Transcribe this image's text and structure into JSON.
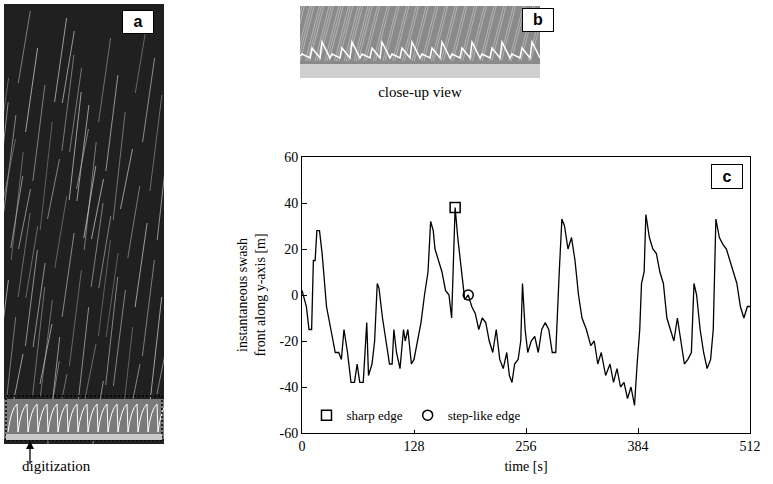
{
  "panels": [
    {
      "label": "a",
      "type": "image",
      "annotation": "digitization"
    },
    {
      "label": "b",
      "type": "image",
      "caption": "close-up view"
    }
  ],
  "chart_data": {
    "panel": "c",
    "type": "line",
    "xlabel": "time [s]",
    "ylabel": "instantaneous swash front along y-axis [m]",
    "x": [
      0,
      5,
      8,
      11,
      13,
      15,
      17,
      20,
      23,
      28,
      33,
      38,
      42,
      45,
      48,
      52,
      56,
      60,
      63,
      66,
      70,
      74,
      76,
      80,
      83,
      86,
      88,
      92,
      96,
      100,
      103,
      105,
      108,
      112,
      116,
      118,
      121,
      125,
      128,
      132,
      136,
      140,
      144,
      147,
      150,
      152,
      156,
      160,
      164,
      168,
      171,
      175,
      178,
      182,
      186,
      190,
      194,
      198,
      202,
      206,
      210,
      214,
      218,
      222,
      226,
      230,
      234,
      237,
      240,
      243,
      247,
      250,
      252,
      255,
      258,
      262,
      266,
      270,
      274,
      278,
      282,
      286,
      290,
      294,
      297,
      300,
      304,
      308,
      312,
      316,
      320,
      325,
      330,
      334,
      338,
      342,
      347,
      352,
      356,
      360,
      364,
      368,
      372,
      376,
      380,
      383,
      386,
      388,
      391,
      393,
      397,
      401,
      405,
      409,
      413,
      417,
      421,
      425,
      429,
      433,
      437,
      441,
      445,
      448,
      451,
      455,
      459,
      463,
      467,
      470,
      473,
      477,
      481,
      485,
      489,
      493,
      497,
      501,
      505,
      509,
      512
    ],
    "series": [
      {
        "color": "#000000",
        "values": [
          2,
          -5,
          -15,
          -15,
          15,
          15,
          28,
          28,
          18,
          -5,
          -15,
          -25,
          -25,
          -28,
          -15,
          -25,
          -38,
          -38,
          -30,
          -38,
          -38,
          -12,
          -35,
          -30,
          -20,
          5,
          3,
          -10,
          -20,
          -30,
          -30,
          -15,
          -25,
          -32,
          -15,
          -20,
          -15,
          -30,
          -28,
          -20,
          -12,
          0,
          10,
          32,
          28,
          20,
          15,
          10,
          2,
          0,
          -10,
          38,
          25,
          10,
          -2,
          0,
          -5,
          -8,
          -15,
          -10,
          -12,
          -20,
          -25,
          -15,
          -28,
          -32,
          -25,
          -35,
          -38,
          -30,
          -28,
          -20,
          5,
          -15,
          -25,
          -20,
          -18,
          -25,
          -15,
          -12,
          -15,
          -25,
          -25,
          10,
          33,
          30,
          20,
          25,
          15,
          0,
          -10,
          -15,
          -22,
          -20,
          -30,
          -25,
          -35,
          -30,
          -38,
          -32,
          -40,
          -38,
          -45,
          -40,
          -48,
          -30,
          -15,
          5,
          10,
          35,
          25,
          20,
          18,
          10,
          5,
          -10,
          -15,
          -20,
          -10,
          -20,
          -30,
          -28,
          -25,
          5,
          0,
          -15,
          -25,
          -32,
          -28,
          -15,
          33,
          25,
          22,
          20,
          15,
          10,
          5,
          -5,
          -10,
          -5,
          -5
        ]
      }
    ],
    "points": [
      {
        "name": "sharp edge",
        "marker": "square",
        "x": 175,
        "y": 38
      },
      {
        "name": "step-like edge",
        "marker": "circle",
        "x": 190,
        "y": 0
      }
    ],
    "xlim": [
      0,
      512
    ],
    "xticks": [
      0,
      128,
      256,
      384,
      512
    ],
    "ylim": [
      -60,
      60
    ],
    "yticks": [
      -60,
      -40,
      -20,
      0,
      20,
      40,
      60
    ],
    "legend": "lower left",
    "grid": false
  }
}
